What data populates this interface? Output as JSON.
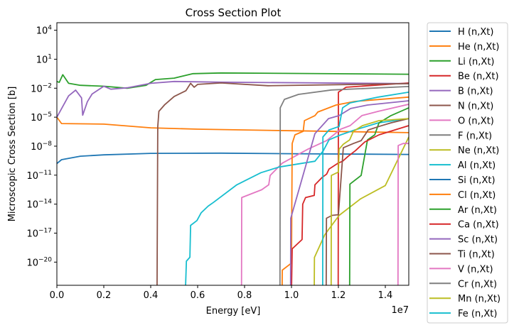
{
  "chart_data": {
    "type": "line",
    "title": "Cross Section Plot",
    "xlabel": "Energy [eV]",
    "ylabel": "Microscopic Cross Section [b]",
    "x_offset_label": "1e7",
    "xscale": "linear",
    "yscale": "log",
    "xlim": [
      0,
      15000000
    ],
    "ylim": [
      4e-23,
      60000.0
    ],
    "xticks": [
      0,
      2000000,
      4000000,
      6000000,
      8000000,
      10000000,
      12000000,
      14000000
    ],
    "xtick_labels": [
      "0.0",
      "0.2",
      "0.4",
      "0.6",
      "0.8",
      "1.0",
      "1.2",
      "1.4"
    ],
    "ytick_exponents": [
      4,
      1,
      -2,
      -5,
      -8,
      -11,
      -14,
      -17,
      -20
    ],
    "ytick_base": "10",
    "grid": false,
    "legend_placement": "outside-right",
    "series": [
      {
        "name": "H (n,Xt)",
        "color": "#1f77b4",
        "x": [
          0,
          200000,
          1000000,
          2000000,
          4000000,
          7000000,
          10000000,
          15000000
        ],
        "y": [
          1.6e-10,
          4e-10,
          9.1e-10,
          1.26e-09,
          1.8e-09,
          1.9e-09,
          1.66e-09,
          1.4e-09
        ]
      },
      {
        "name": "He (n,Xt)",
        "color": "#ff7f0e",
        "x": [
          0,
          200000,
          2000000,
          4000000,
          6000000,
          10000000,
          15000000
        ],
        "y": [
          1e-05,
          2.2e-06,
          1.9e-06,
          8e-07,
          5.8e-07,
          4e-07,
          2.5e-07
        ]
      },
      {
        "name": "Li (n,Xt)",
        "color": "#2ca02c",
        "x": [
          0,
          100000,
          250000,
          500000,
          1000000,
          2000000,
          3000000,
          3800000,
          4200000,
          5000000,
          5800000,
          7000000,
          15000000
        ],
        "y": [
          0.05,
          0.04,
          0.25,
          0.032,
          0.02,
          0.016,
          0.01,
          0.02,
          0.079,
          0.11,
          0.32,
          0.38,
          0.28
        ]
      },
      {
        "name": "Be (n,Xt)",
        "color": "#d62728",
        "x": [
          11990000,
          12000000,
          12330000,
          15000000
        ],
        "y": [
          1e-23,
          0.0039,
          0.0126,
          0.035
        ]
      },
      {
        "name": "B (n,Xt)",
        "color": "#9467bd",
        "x": [
          0,
          500000,
          800000,
          1050000,
          1100000,
          1300000,
          1500000,
          2000000,
          2300000,
          3000000,
          4000000,
          5000000,
          7000000,
          15000000
        ],
        "y": [
          1e-05,
          0.0016,
          0.0063,
          0.001,
          1.6e-05,
          0.0004,
          0.0025,
          0.016,
          0.0079,
          0.011,
          0.032,
          0.05,
          0.042,
          0.03
        ]
      },
      {
        "name": "N (n,Xt)",
        "color": "#8c564b",
        "x": [
          4270000,
          4300000,
          4350000,
          4600000,
          5000000,
          5500000,
          5700000,
          5850000,
          6000000,
          7000000,
          9000000,
          15000000
        ],
        "y": [
          1e-23,
          1e-06,
          4e-05,
          0.0002,
          0.0014,
          0.0055,
          0.032,
          0.0126,
          0.025,
          0.035,
          0.018,
          0.03
        ]
      },
      {
        "name": "O (n,Xt)",
        "color": "#e377c2",
        "x": [
          7870000,
          7880000,
          8730000,
          9030000,
          9090000,
          9600000,
          10700000,
          11500000,
          12100000,
          12500000,
          13000000,
          13700000,
          15000000
        ],
        "y": [
          1e-23,
          4.8e-14,
          3.1e-13,
          1e-12,
          9.3e-12,
          1.7e-10,
          4.9e-09,
          3.8e-08,
          5.8e-07,
          1.35e-06,
          1.45e-05,
          4e-05,
          0.00022
        ]
      },
      {
        "name": "F (n,Xt)",
        "color": "#7f7f7f",
        "x": [
          9510000,
          9520000,
          9700000,
          10300000,
          11700000,
          15000000
        ],
        "y": [
          1e-23,
          9.3e-05,
          0.0007,
          0.0023,
          0.0065,
          0.015
        ]
      },
      {
        "name": "Ne (n,Xt)",
        "color": "#bcbd22",
        "x": [
          10970000,
          10980000,
          11420000,
          12030000,
          12940000,
          14000000,
          15000000
        ],
        "y": [
          1e-23,
          3.1e-20,
          7e-18,
          6.9e-16,
          3.5e-14,
          8.5e-13,
          8.9e-08
        ]
      },
      {
        "name": "Al (n,Xt)",
        "color": "#17becf",
        "x": [
          5480000,
          5520000,
          5670000,
          5700000,
          5970000,
          6150000,
          6450000,
          6670000,
          7670000,
          8700000,
          9480000,
          11000000,
          11360000,
          11600000,
          12100000,
          12700000,
          13700000,
          15000000
        ],
        "y": [
          1e-23,
          1.26e-20,
          3.2e-20,
          6.3e-17,
          2e-16,
          1.26e-15,
          6.3e-15,
          1.5e-14,
          1e-12,
          1.8e-11,
          7e-11,
          2.75e-10,
          3.5e-09,
          4.5e-08,
          1.5e-07,
          4.8e-07,
          2.6e-06,
          7.2e-06
        ]
      },
      {
        "name": "Si (n,Xt)",
        "color": "#1f77b4",
        "x": [],
        "y": []
      },
      {
        "name": "Cl (n,Xt)",
        "color": "#ff7f0e",
        "x": [
          9600000,
          9610000,
          10000000,
          10030000,
          10150000,
          10500000,
          10550000,
          11000000,
          11120000,
          11900000,
          12700000,
          15000000
        ],
        "y": [
          1e-23,
          1.5e-21,
          8e-21,
          1.9e-08,
          1.5e-07,
          3.5e-07,
          4.4e-06,
          1.45e-05,
          3.4e-05,
          0.00018,
          0.00043,
          0.0012
        ]
      },
      {
        "name": "Ar (n,Xt)",
        "color": "#2ca02c",
        "x": [
          12480000,
          12490000,
          12970000,
          13240000,
          13550000,
          13730000,
          14240000,
          15000000
        ],
        "y": [
          1e-23,
          1.2e-12,
          9.3e-12,
          4.5e-08,
          1.5e-07,
          2.6e-06,
          1.45e-05,
          9.3e-05
        ]
      },
      {
        "name": "Ca (n,Xt)",
        "color": "#d62728",
        "x": [
          10000000,
          10030000,
          10450000,
          10480000,
          10600000,
          10970000,
          11000000,
          11300000,
          11500000,
          11600000,
          11970000,
          12180000,
          12420000,
          12730000,
          13120000,
          13730000,
          15000000
        ],
        "y": [
          1e-23,
          2.4e-19,
          2.2e-18,
          1e-14,
          4.8e-14,
          8e-14,
          1e-12,
          5.6e-12,
          1.3e-11,
          4.3e-11,
          1.66e-10,
          2.75e-10,
          9.1e-10,
          3.5e-09,
          2.7e-08,
          1.5e-07,
          1.35e-06
        ]
      },
      {
        "name": "Sc (n,Xt)",
        "color": "#9467bd",
        "x": [
          9960000,
          9970000,
          11000000,
          11580000,
          12030000,
          12520000,
          13240000,
          15000000
        ],
        "y": [
          1e-23,
          3.5e-16,
          2e-07,
          7.2e-06,
          1.45e-05,
          7.9e-05,
          0.00018,
          0.0005
        ]
      },
      {
        "name": "Ti (n,Xt)",
        "color": "#8c564b",
        "x": [
          11480000,
          11490000,
          11730000,
          12000000,
          12210000,
          12640000,
          12970000,
          13270000,
          13730000,
          14240000,
          15000000
        ],
        "y": [
          1e-23,
          3.5e-16,
          6.9e-16,
          8.1e-16,
          6.9e-09,
          1.9e-08,
          3.8e-08,
          4.8e-07,
          1.1e-06,
          2.6e-06,
          7.2e-06
        ]
      },
      {
        "name": "V (n,Xt)",
        "color": "#e377c2",
        "x": [
          14540000,
          14550000,
          14760000,
          15000000
        ],
        "y": [
          1e-23,
          1.15e-08,
          1.9e-08,
          1.9e-08
        ]
      },
      {
        "name": "Cr (n,Xt)",
        "color": "#7f7f7f",
        "x": [],
        "y": []
      },
      {
        "name": "Mn (n,Xt)",
        "color": "#bcbd22",
        "x": [
          11690000,
          11700000,
          12000000,
          12030000,
          12210000,
          12480000,
          12640000,
          13030000,
          13730000,
          15000000
        ],
        "y": [
          1e-23,
          9.3e-12,
          2.1e-11,
          4.9e-09,
          1.6e-08,
          4.5e-08,
          3.5e-07,
          1.35e-06,
          4.4e-06,
          7.2e-06
        ]
      },
      {
        "name": "Fe (n,Xt)",
        "color": "#17becf",
        "x": [
          11330000,
          11340000,
          11600000,
          12030000,
          12180000,
          12500000,
          13700000,
          15000000
        ],
        "y": [
          1e-23,
          8.9e-08,
          4.8e-07,
          1.1e-06,
          9.3e-05,
          0.0003,
          0.0012,
          0.0039
        ]
      }
    ]
  }
}
